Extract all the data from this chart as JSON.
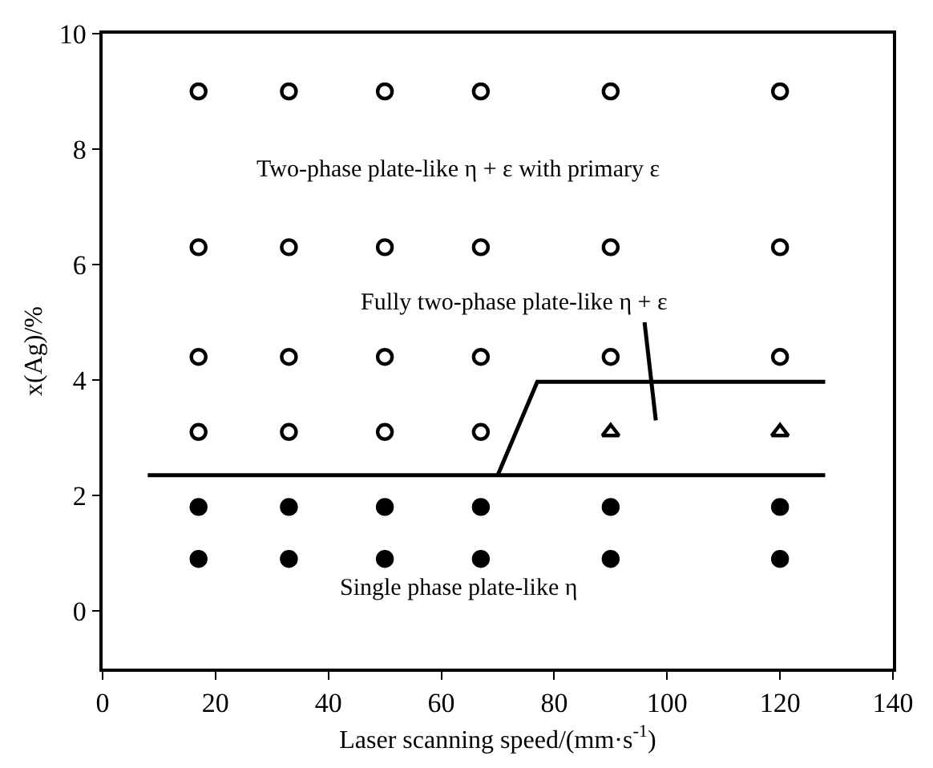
{
  "chart_data": {
    "type": "scatter",
    "xlabel": "Laser scanning speed/(mm·s$^{-1}$)",
    "ylabel": "x(Ag)/%",
    "xlim": [
      0,
      140
    ],
    "xticks": [
      0,
      20,
      40,
      60,
      80,
      100,
      120,
      140
    ],
    "ylim": [
      -1,
      10
    ],
    "yticks": [
      0,
      2,
      4,
      6,
      8,
      10
    ],
    "series": [
      {
        "marker": "circle",
        "color": "#ffffff",
        "x": [
          17,
          33,
          50,
          67,
          90,
          120,
          17,
          33,
          50,
          67,
          90,
          120,
          17,
          33,
          50,
          67,
          90,
          120,
          17,
          33,
          50,
          67
        ],
        "values": [
          9,
          9,
          9,
          9,
          9,
          9,
          6.3,
          6.3,
          6.3,
          6.3,
          6.3,
          6.3,
          4.4,
          4.4,
          4.4,
          4.4,
          4.4,
          4.4,
          3.1,
          3.1,
          3.1,
          3.1
        ]
      },
      {
        "marker": "triangle",
        "color": "#ffffff",
        "x": [
          90,
          120
        ],
        "values": [
          3.1,
          3.1
        ]
      },
      {
        "marker": "circle",
        "color": "#000000",
        "x": [
          17,
          33,
          50,
          67,
          90,
          120,
          17,
          33,
          50,
          67,
          90,
          120
        ],
        "values": [
          1.8,
          1.8,
          1.8,
          1.8,
          1.8,
          1.8,
          0.9,
          0.9,
          0.9,
          0.9,
          0.9,
          0.9
        ]
      },
      {
        "type": "line",
        "marker": "none",
        "color": "#000000",
        "x": [
          8,
          128
        ],
        "values": [
          2.35,
          2.35
        ]
      },
      {
        "type": "line",
        "marker": "none",
        "color": "#000000",
        "x": [
          70,
          77,
          128
        ],
        "values": [
          2.35,
          3.97,
          3.97
        ]
      },
      {
        "type": "line",
        "marker": "none",
        "color": "#000000",
        "x": [
          96,
          98
        ],
        "values": [
          5.0,
          3.3
        ]
      }
    ],
    "annotations": [
      "Two-phase plate-like η + ε with primary ε",
      "Fully two-phase plate-like η + ε",
      "Single phase plate-like η"
    ]
  }
}
